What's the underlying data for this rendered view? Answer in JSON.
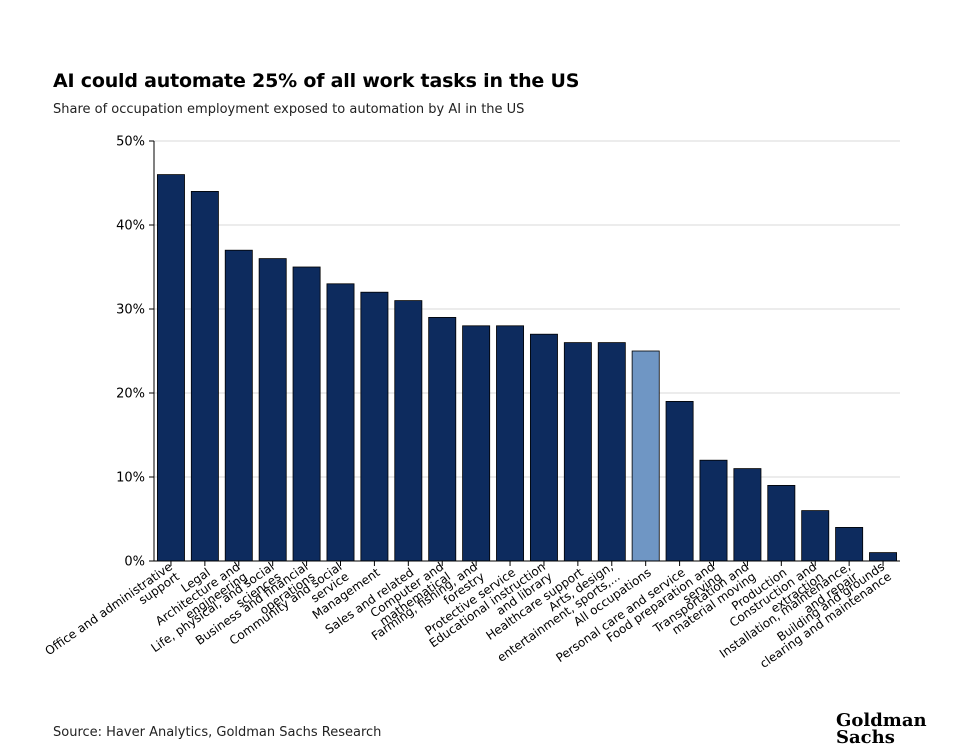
{
  "title": "AI could automate 25% of all work tasks in the US",
  "subtitle": "Share of occupation employment exposed to automation by AI in the US",
  "source": "Source: Haver Analytics, Goldman Sachs Research",
  "logo": {
    "line1": "Goldman",
    "line2": "Sachs"
  },
  "colors": {
    "bar": "#0d2b5e",
    "highlight": "#6f96c4",
    "grid": "#d9d9d9",
    "axis": "#000000"
  },
  "chart_data": {
    "type": "bar",
    "ylim": [
      0,
      50
    ],
    "yticks": [
      "0%",
      "10%",
      "20%",
      "30%",
      "40%",
      "50%"
    ],
    "ytick_values": [
      0,
      10,
      20,
      30,
      40,
      50
    ],
    "grid": true,
    "highlight_category": "All occupations",
    "categories": [
      [
        "Office and administrative",
        "support"
      ],
      [
        "Legal"
      ],
      [
        "Architecture and",
        "engineering"
      ],
      [
        "Life, physical, and social",
        "sciences"
      ],
      [
        "Business and financial",
        "operations"
      ],
      [
        "Community and social",
        "service"
      ],
      [
        "Management"
      ],
      [
        "Sales and related"
      ],
      [
        "Computer and",
        "mathematical"
      ],
      [
        "Farming, fishing, and",
        "forestry"
      ],
      [
        "Protective service"
      ],
      [
        "Educational instruction",
        "and library"
      ],
      [
        "Healthcare support"
      ],
      [
        "Arts, design,",
        "entertainment, sports,..."
      ],
      [
        "All occupations"
      ],
      [
        "Personal care and service"
      ],
      [
        "Food preparation and",
        "serving"
      ],
      [
        "Transportation and",
        "material moving"
      ],
      [
        "Production"
      ],
      [
        "Construction and",
        "extraction"
      ],
      [
        "Installation, maintenance,",
        "and repair"
      ],
      [
        "Building and grounds",
        "clearing and maintenance"
      ]
    ],
    "values": [
      46,
      44,
      37,
      36,
      35,
      33,
      32,
      31,
      29,
      28,
      28,
      27,
      26,
      26,
      25,
      19,
      12,
      11,
      9,
      6,
      4,
      1
    ]
  }
}
